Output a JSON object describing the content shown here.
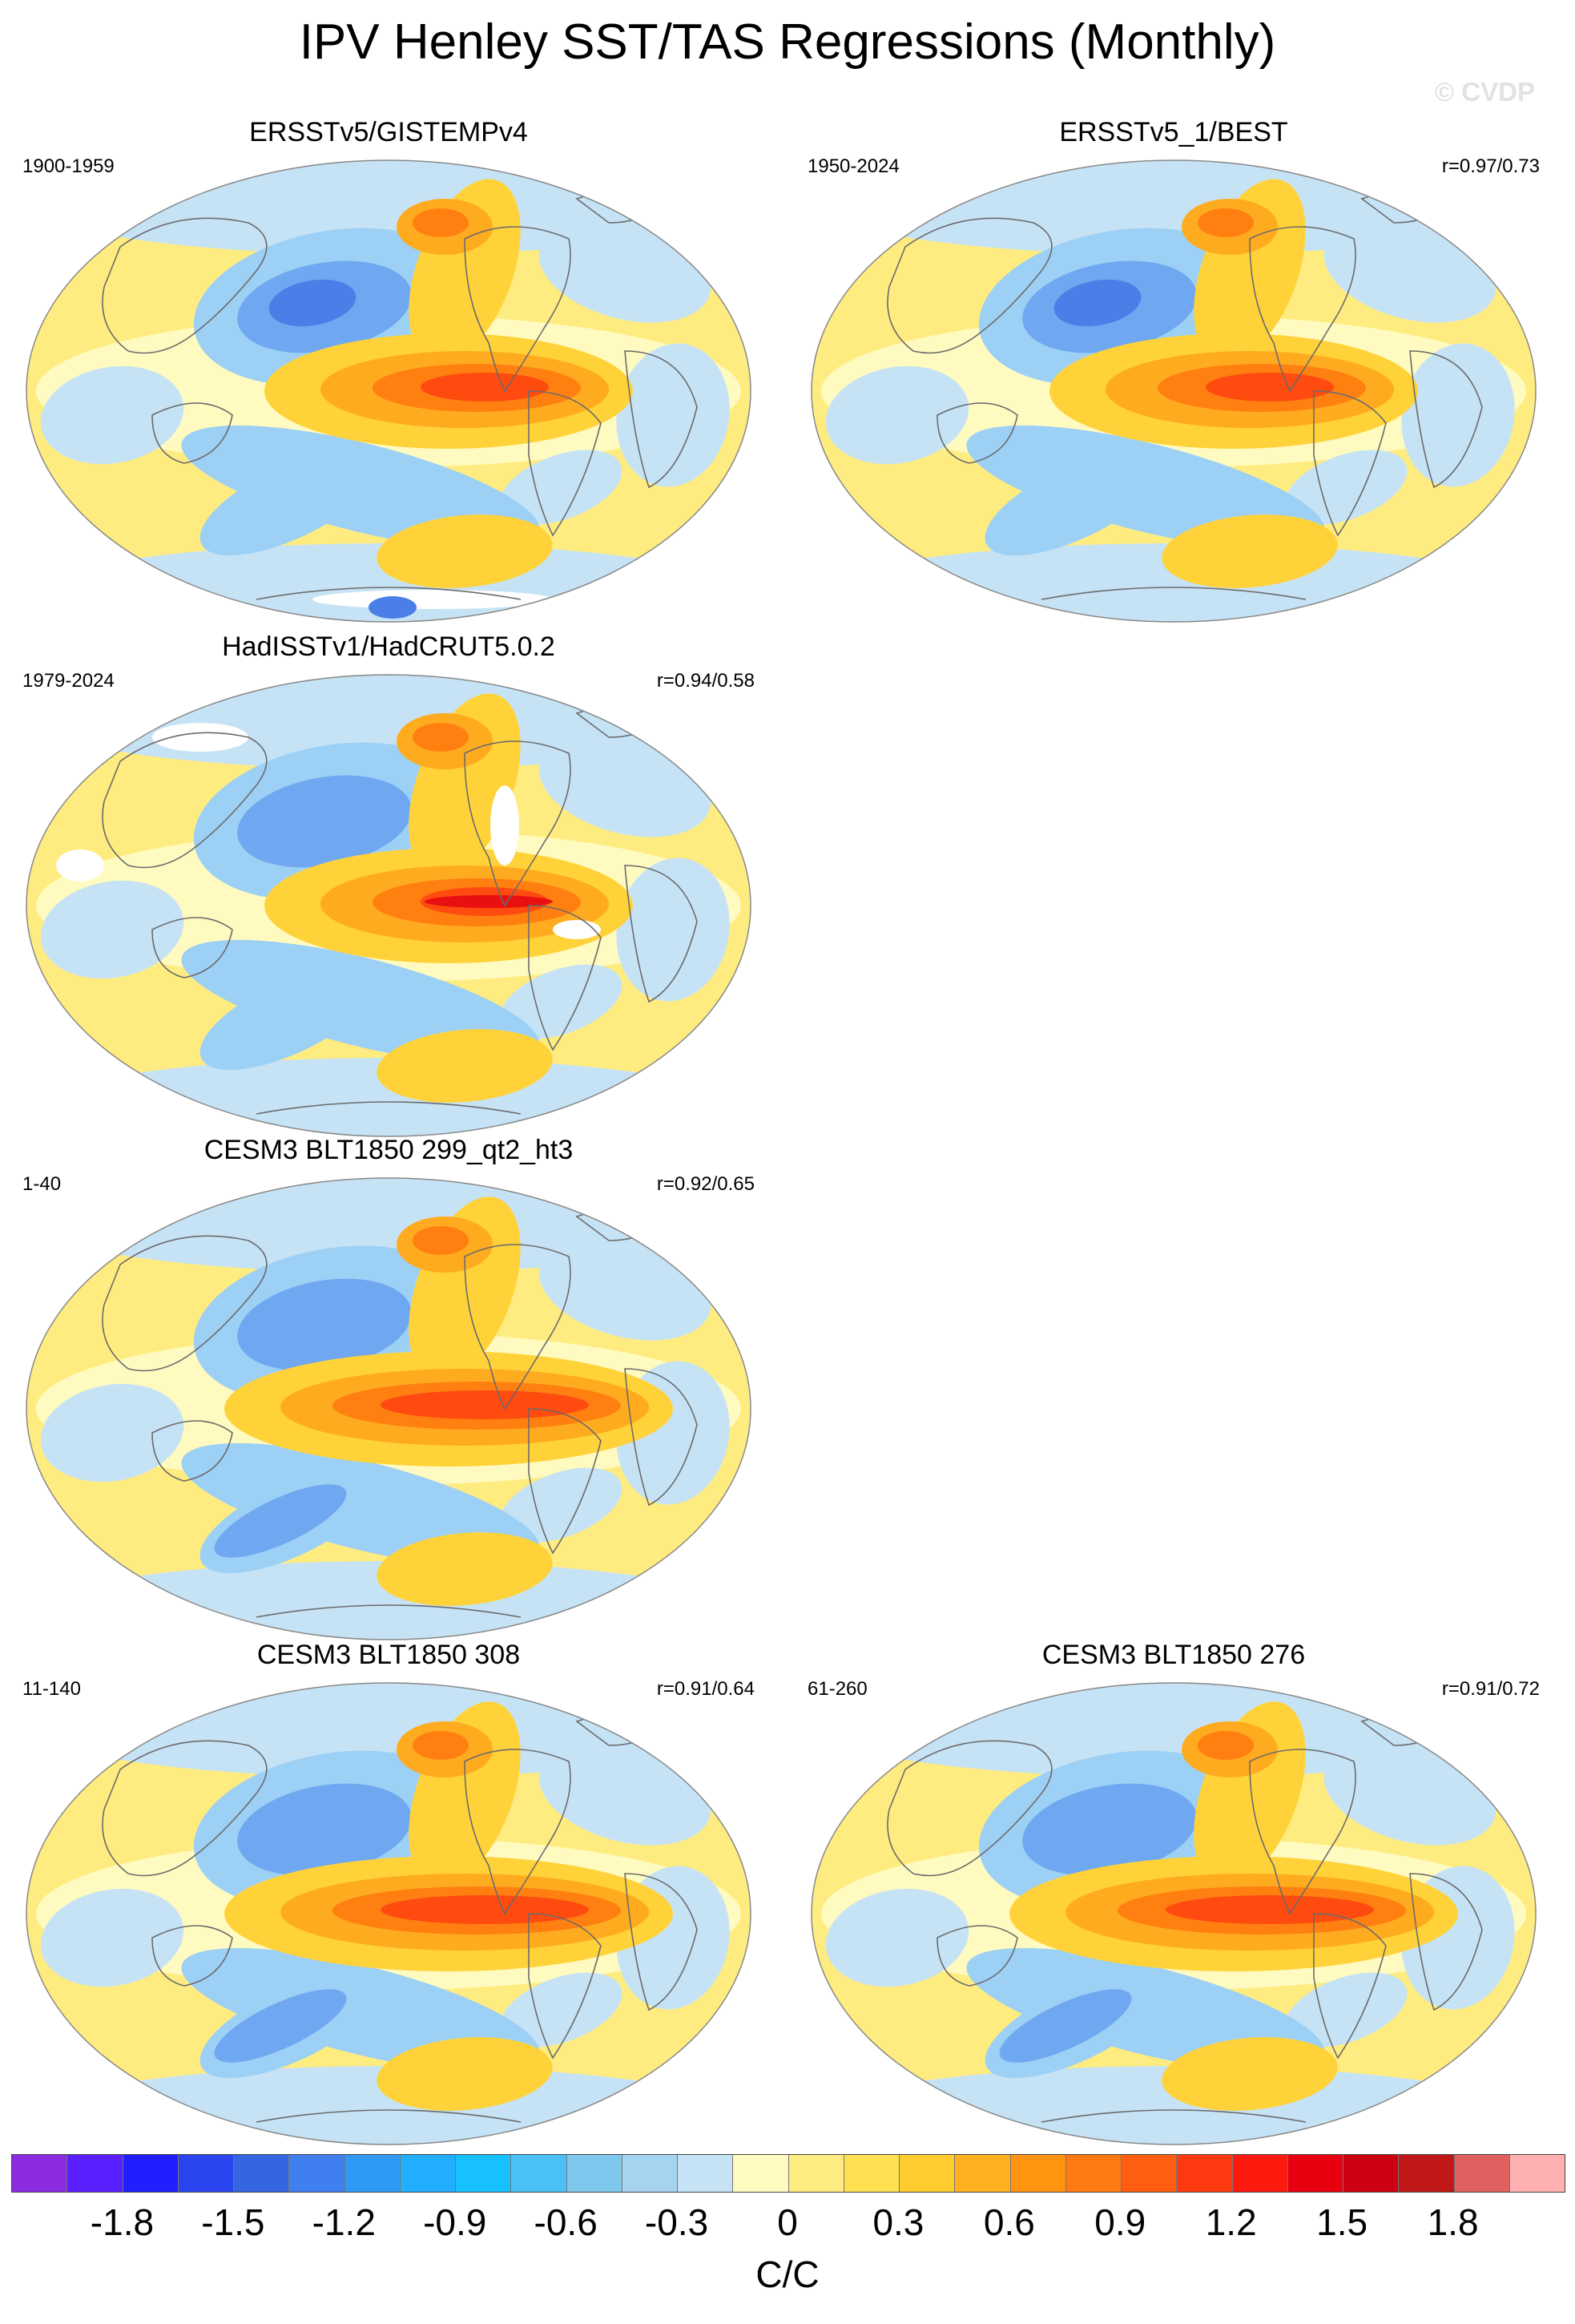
{
  "title": "IPV Henley SST/TAS Regressions (Monthly)",
  "watermark": "© CVDP",
  "panels": [
    {
      "title": "ERSSTv5/GISTEMPv4",
      "period": "1900-1959",
      "corr": "",
      "pattern": "obs_early"
    },
    {
      "title": "ERSSTv5_1/BEST",
      "period": "1950-2024",
      "corr": "r=0.97/0.73",
      "pattern": "obs"
    },
    {
      "title": "HadISSTv1/HadCRUT5.0.2",
      "period": "1979-2024",
      "corr": "r=0.94/0.58",
      "pattern": "obs_sparse"
    },
    {
      "title": "CESM3 BLT1850 299_qt2_ht3",
      "period": "1-40",
      "corr": "r=0.92/0.65",
      "pattern": "model"
    },
    {
      "title": "CESM3 BLT1850 308",
      "period": "11-140",
      "corr": "r=0.91/0.64",
      "pattern": "model_broad"
    },
    {
      "title": "CESM3 BLT1850 276",
      "period": "61-260",
      "corr": "r=0.91/0.72",
      "pattern": "model_broad"
    }
  ],
  "colorbar": {
    "colors": [
      "#8a2be2",
      "#5a1fff",
      "#1f1fff",
      "#2a44f0",
      "#3366e0",
      "#3f7ff0",
      "#2f9af5",
      "#21aeff",
      "#17c1ff",
      "#4ac0f5",
      "#7ec8ee",
      "#a6d3ef",
      "#c6e3f5",
      "#fffbc0",
      "#ffec80",
      "#ffe050",
      "#ffcc30",
      "#ffb020",
      "#ff9410",
      "#ff7a10",
      "#ff5e10",
      "#ff3a10",
      "#ff1a10",
      "#e80010",
      "#cc0010",
      "#c01818",
      "#e06060",
      "#ffb0b0"
    ],
    "tick_labels": [
      "-1.8",
      "-1.5",
      "-1.2",
      "-0.9",
      "-0.6",
      "-0.3",
      "0",
      "0.3",
      "0.6",
      "0.9",
      "1.2",
      "1.5",
      "1.8"
    ],
    "label": "C/C"
  }
}
